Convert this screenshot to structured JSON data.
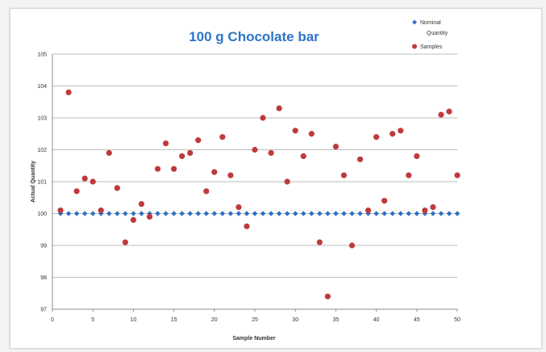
{
  "chart_data": {
    "type": "scatter",
    "title": "100 g Chocolate bar",
    "title_color": "#2e74c8",
    "xlabel": "Sample Number",
    "ylabel": "Actual Quantity",
    "xlim": [
      0,
      50
    ],
    "ylim": [
      97,
      105
    ],
    "xticks": [
      0,
      5,
      10,
      15,
      20,
      25,
      30,
      35,
      40,
      45,
      50
    ],
    "yticks": [
      97,
      98,
      99,
      100,
      101,
      102,
      103,
      104,
      105
    ],
    "grid": "horizontal",
    "legend_position": "top-right",
    "series": [
      {
        "name": "Nominal Quantity",
        "legend_lines": [
          "Nominal",
          "Quantity"
        ],
        "marker": "diamond",
        "color": "#2f6fc4",
        "x": [
          1,
          2,
          3,
          4,
          5,
          6,
          7,
          8,
          9,
          10,
          11,
          12,
          13,
          14,
          15,
          16,
          17,
          18,
          19,
          20,
          21,
          22,
          23,
          24,
          25,
          26,
          27,
          28,
          29,
          30,
          31,
          32,
          33,
          34,
          35,
          36,
          37,
          38,
          39,
          40,
          41,
          42,
          43,
          44,
          45,
          46,
          47,
          48,
          49,
          50
        ],
        "y": [
          100,
          100,
          100,
          100,
          100,
          100,
          100,
          100,
          100,
          100,
          100,
          100,
          100,
          100,
          100,
          100,
          100,
          100,
          100,
          100,
          100,
          100,
          100,
          100,
          100,
          100,
          100,
          100,
          100,
          100,
          100,
          100,
          100,
          100,
          100,
          100,
          100,
          100,
          100,
          100,
          100,
          100,
          100,
          100,
          100,
          100,
          100,
          100,
          100,
          100
        ]
      },
      {
        "name": "Samples",
        "legend_lines": [
          "Samples"
        ],
        "marker": "circle",
        "color": "#c0393b",
        "x": [
          1,
          2,
          3,
          4,
          5,
          6,
          7,
          8,
          9,
          10,
          11,
          12,
          13,
          14,
          15,
          16,
          17,
          18,
          19,
          20,
          21,
          22,
          23,
          24,
          25,
          26,
          27,
          28,
          29,
          30,
          31,
          32,
          33,
          34,
          35,
          36,
          37,
          38,
          39,
          40,
          41,
          42,
          43,
          44,
          45,
          46,
          47,
          48,
          49,
          50
        ],
        "y": [
          100.1,
          103.8,
          100.7,
          101.1,
          101.0,
          100.1,
          101.9,
          100.8,
          99.1,
          99.8,
          100.3,
          99.9,
          101.4,
          102.2,
          101.4,
          101.8,
          101.9,
          102.3,
          100.7,
          101.3,
          102.4,
          101.2,
          100.2,
          99.6,
          102.0,
          103.0,
          101.9,
          103.3,
          101.0,
          102.6,
          101.8,
          102.5,
          99.1,
          97.4,
          102.1,
          101.2,
          99.0,
          101.7,
          100.1,
          102.4,
          100.4,
          102.5,
          102.6,
          101.2,
          101.8,
          100.1,
          100.2,
          103.1,
          103.2,
          101.2
        ]
      }
    ]
  }
}
